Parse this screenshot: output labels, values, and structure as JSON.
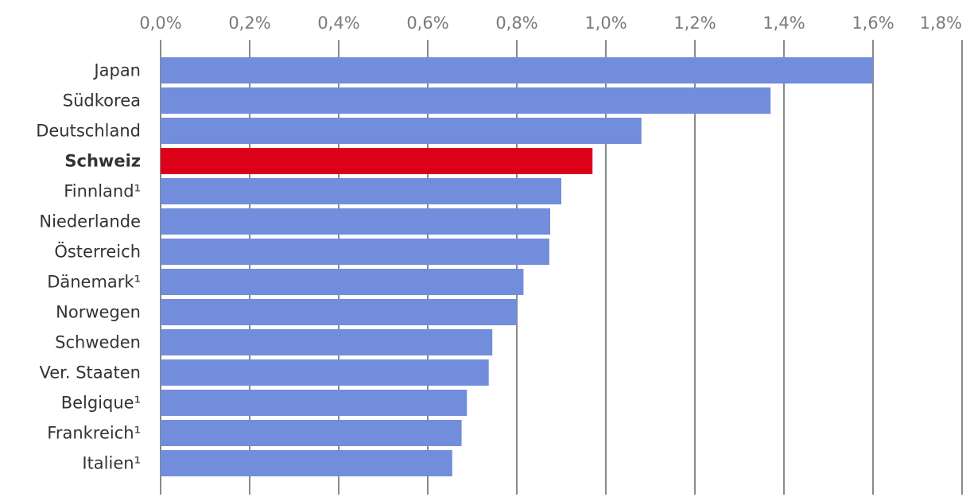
{
  "chart_data": {
    "type": "bar",
    "orientation": "horizontal",
    "title": "",
    "xlabel": "",
    "ylabel": "",
    "xlim": [
      0,
      1.8
    ],
    "grid": true,
    "x_ticks": [
      {
        "value": 0.0,
        "label": "0,0%"
      },
      {
        "value": 0.2,
        "label": "0,2%"
      },
      {
        "value": 0.4,
        "label": "0,4%"
      },
      {
        "value": 0.6,
        "label": "0,6%"
      },
      {
        "value": 0.8,
        "label": "0,8%"
      },
      {
        "value": 1.0,
        "label": "1,0%"
      },
      {
        "value": 1.2,
        "label": "1,2%"
      },
      {
        "value": 1.4,
        "label": "1,4%"
      },
      {
        "value": 1.6,
        "label": "1,6%"
      },
      {
        "value": 1.8,
        "label": "1,8%"
      }
    ],
    "categories": [
      "Japan",
      "Südkorea",
      "Deutschland",
      "Schweiz",
      "Finnland¹",
      "Niederlande",
      "Österreich",
      "Dänemark¹",
      "Norwegen",
      "Schweden",
      "Ver. Staaten",
      "Belgique¹",
      "Frankreich¹",
      "Italien¹"
    ],
    "values": [
      1.6,
      1.37,
      1.08,
      0.97,
      0.9,
      0.875,
      0.873,
      0.815,
      0.8,
      0.745,
      0.737,
      0.688,
      0.676,
      0.655
    ],
    "highlight_category": "Schweiz",
    "colors": {
      "bar": "#728ddb",
      "highlight": "#dc0018",
      "grid": "#8a8a8a",
      "tick_text": "#7a7a7a",
      "label_text": "#333333"
    }
  }
}
